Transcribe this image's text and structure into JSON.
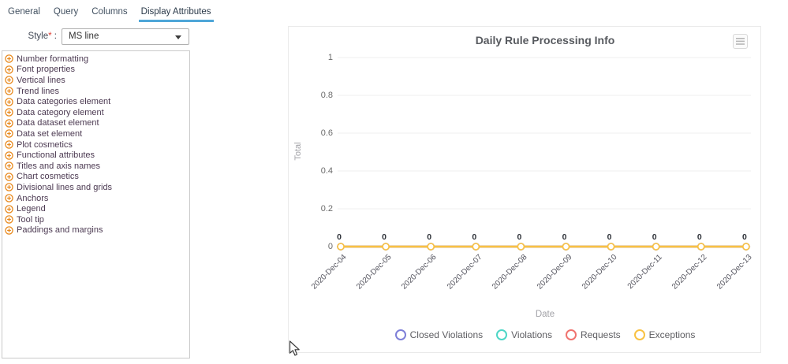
{
  "tabs": {
    "items": [
      {
        "label": "General",
        "name": "tab-general",
        "active": false
      },
      {
        "label": "Query",
        "name": "tab-query",
        "active": false
      },
      {
        "label": "Columns",
        "name": "tab-columns",
        "active": false
      },
      {
        "label": "Display Attributes",
        "name": "tab-display-attributes",
        "active": true
      }
    ]
  },
  "style_row": {
    "label": "Style",
    "required_mark": "*",
    "separator": " :",
    "value": "MS line"
  },
  "attributes_panel": {
    "items": [
      "Number formatting",
      "Font properties",
      "Vertical lines",
      "Trend lines",
      "Data categories element",
      "Data category element",
      "Data dataset element",
      "Data set element",
      "Plot cosmetics",
      "Functional attributes",
      "Titles and axis names",
      "Chart cosmetics",
      "Divisional lines and grids",
      "Anchors",
      "Legend",
      "Tool tip",
      "Paddings and margins"
    ]
  },
  "icons": {
    "list_item_icon": "expand-plus-icon",
    "chart_menu_icon": "hamburger-menu-icon"
  },
  "colors": {
    "accent_tab_underline": "#4fa6d8",
    "list_icon_orange": "#e8881b",
    "required_red": "#e03c31",
    "gridline": "#efefef"
  },
  "chart_data": {
    "type": "line",
    "title": "Daily Rule Processing Info",
    "xlabel": "Date",
    "ylabel": "Total",
    "ylim": [
      0,
      1
    ],
    "yticks": [
      0,
      0.2,
      0.4,
      0.6,
      0.8,
      1
    ],
    "grid": true,
    "legend_position": "bottom",
    "data_labels_shown": true,
    "categories": [
      "2020-Dec-04",
      "2020-Dec-05",
      "2020-Dec-06",
      "2020-Dec-07",
      "2020-Dec-08",
      "2020-Dec-09",
      "2020-Dec-10",
      "2020-Dec-11",
      "2020-Dec-12",
      "2020-Dec-13"
    ],
    "series": [
      {
        "name": "Closed Violations",
        "color": "#7e7fd8",
        "values": [
          0,
          0,
          0,
          0,
          0,
          0,
          0,
          0,
          0,
          0
        ]
      },
      {
        "name": "Violations",
        "color": "#4ed6c6",
        "values": [
          0,
          0,
          0,
          0,
          0,
          0,
          0,
          0,
          0,
          0
        ]
      },
      {
        "name": "Requests",
        "color": "#f0736f",
        "values": [
          0,
          0,
          0,
          0,
          0,
          0,
          0,
          0,
          0,
          0
        ]
      },
      {
        "name": "Exceptions",
        "color": "#f9c243",
        "values": [
          0,
          0,
          0,
          0,
          0,
          0,
          0,
          0,
          0,
          0
        ]
      }
    ]
  }
}
